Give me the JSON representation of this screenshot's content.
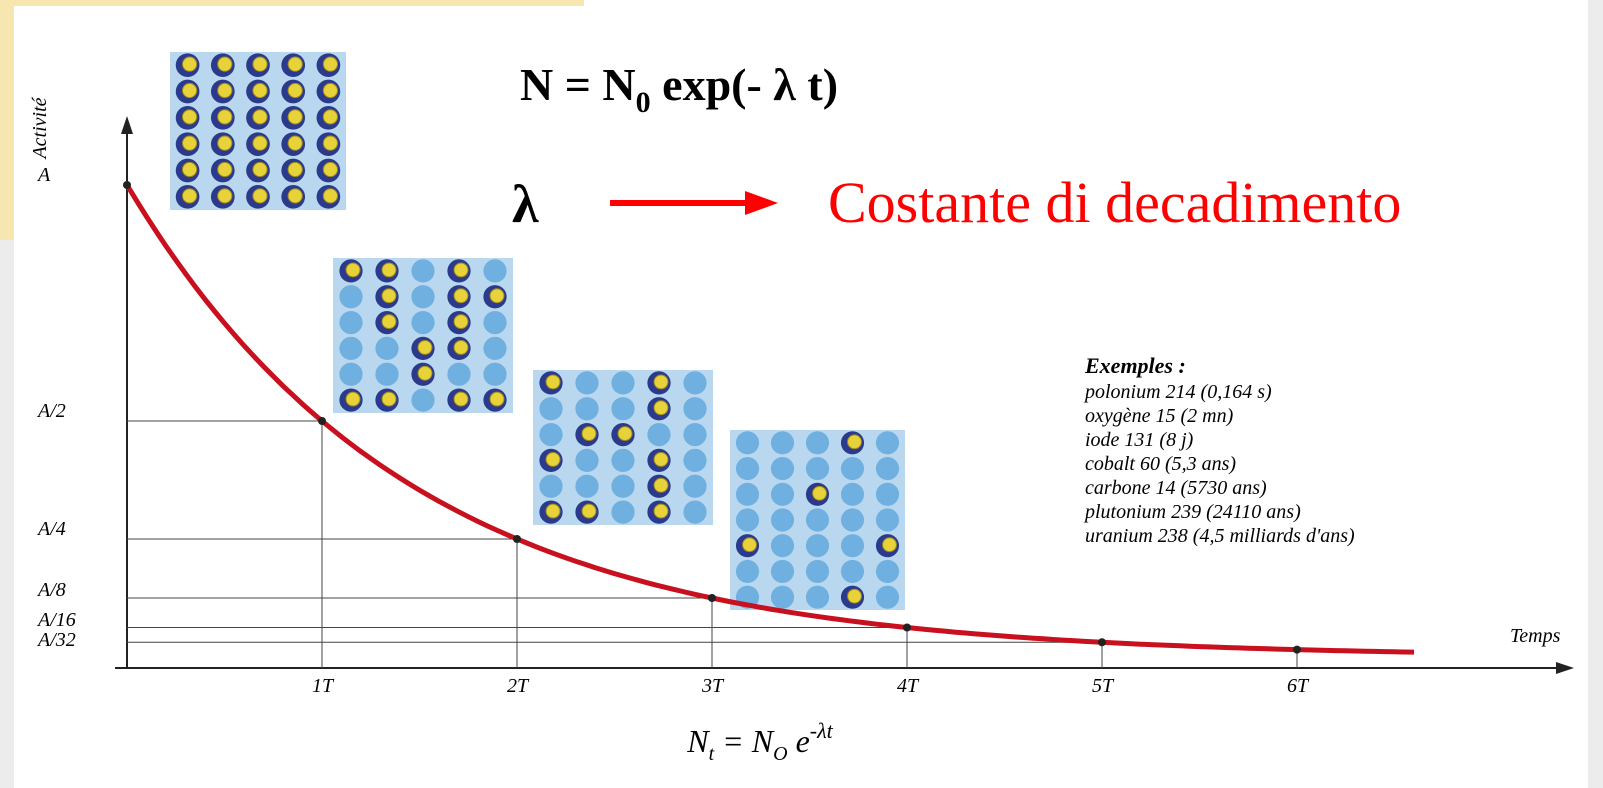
{
  "formula_top": {
    "parts": [
      "N = N",
      "0",
      " exp(- λ t)"
    ]
  },
  "lambda": {
    "symbol": "λ",
    "meaning": "Costante di decadimento"
  },
  "graph": {
    "y_axis_label": "Activité",
    "x_axis_label": "Temps",
    "y_tick_labels": [
      "A",
      "A/2",
      "A/4",
      "A/8",
      "A/16",
      "A/32"
    ],
    "x_tick_labels": [
      "1T",
      "2T",
      "3T",
      "4T",
      "5T",
      "6T"
    ]
  },
  "examples": {
    "title": "Exemples :",
    "items": [
      "polonium 214 (0,164 s)",
      "oxygène 15 (2 mn)",
      "iode 131 (8 j)",
      "cobalt 60 (5,3 ans)",
      "carbone 14 (5730 ans)",
      "plutonium 239 (24110 ans)",
      "uranium 238 (4,5 milliards d'ans)"
    ]
  },
  "formula_bottom": {
    "parts": [
      "N",
      "t",
      " = N",
      "O",
      " e",
      "-λt"
    ]
  }
}
